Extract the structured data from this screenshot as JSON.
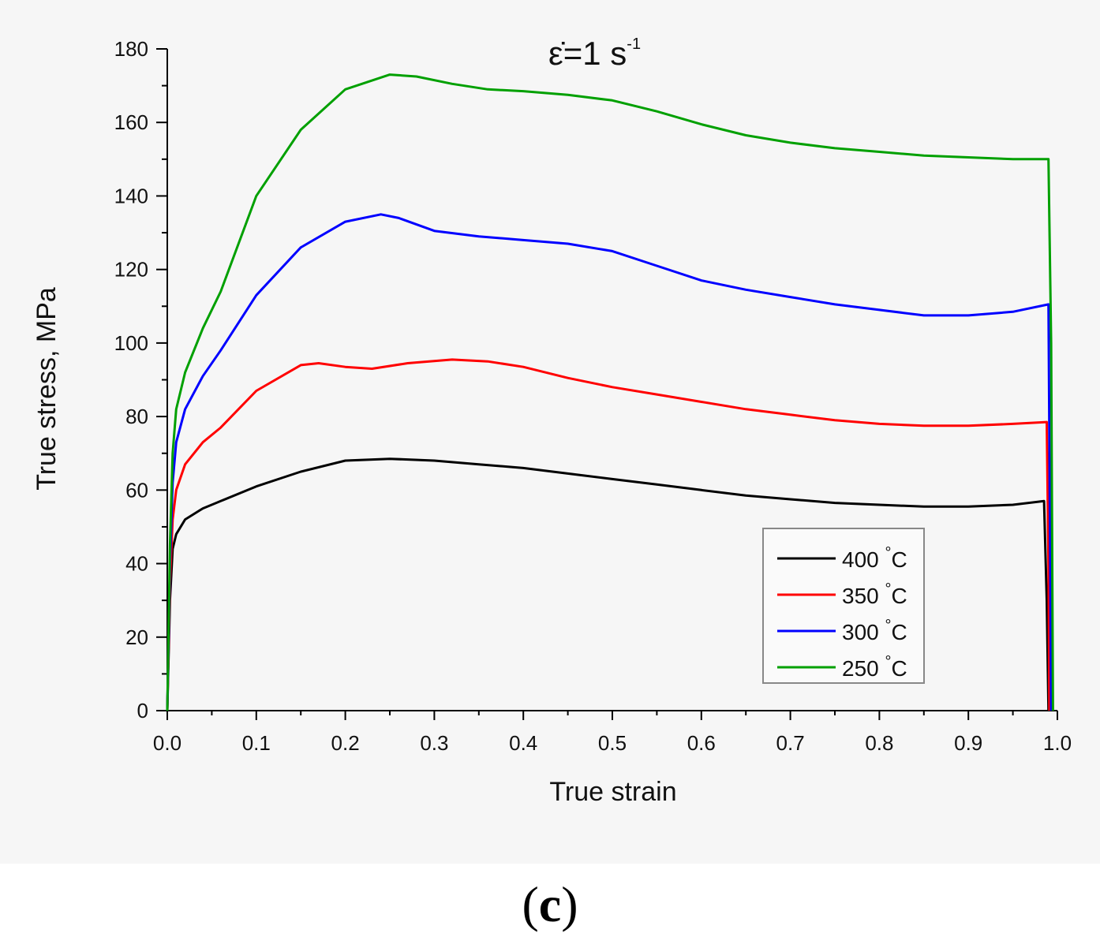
{
  "chart_data": {
    "type": "line",
    "title": {
      "main": "ε̇=1 s",
      "sup": "-1"
    },
    "xlabel": "True strain",
    "ylabel": "True stress, MPa",
    "xlim": [
      0.0,
      1.0
    ],
    "ylim": [
      0,
      180
    ],
    "xticks": [
      "0.0",
      "0.1",
      "0.2",
      "0.3",
      "0.4",
      "0.5",
      "0.6",
      "0.7",
      "0.8",
      "0.9",
      "1.0"
    ],
    "yticks": [
      "0",
      "20",
      "40",
      "60",
      "80",
      "100",
      "120",
      "140",
      "160",
      "180"
    ],
    "legend_position": "bottom-right",
    "series": [
      {
        "name": "400",
        "unit": "°C",
        "color": "#000000",
        "x": [
          0.0,
          0.003,
          0.006,
          0.01,
          0.02,
          0.04,
          0.06,
          0.1,
          0.15,
          0.2,
          0.25,
          0.3,
          0.35,
          0.4,
          0.45,
          0.5,
          0.55,
          0.6,
          0.65,
          0.7,
          0.75,
          0.8,
          0.85,
          0.9,
          0.95,
          0.985,
          0.988,
          0.99
        ],
        "y": [
          0,
          30,
          44,
          48,
          52,
          55,
          57,
          61,
          65,
          68,
          68.5,
          68,
          67,
          66,
          64.5,
          63,
          61.5,
          60,
          58.5,
          57.5,
          56.5,
          56,
          55.5,
          55.5,
          56,
          57,
          30,
          0
        ]
      },
      {
        "name": "350",
        "unit": "°C",
        "color": "#ff0000",
        "x": [
          0.0,
          0.003,
          0.006,
          0.01,
          0.02,
          0.04,
          0.06,
          0.1,
          0.15,
          0.17,
          0.2,
          0.23,
          0.27,
          0.32,
          0.36,
          0.4,
          0.45,
          0.5,
          0.55,
          0.6,
          0.65,
          0.7,
          0.75,
          0.8,
          0.85,
          0.9,
          0.95,
          0.988,
          0.99,
          0.991
        ],
        "y": [
          0,
          35,
          52,
          60,
          67,
          73,
          77,
          87,
          94,
          94.5,
          93.5,
          93,
          94.5,
          95.5,
          95,
          93.5,
          90.5,
          88,
          86,
          84,
          82,
          80.5,
          79,
          78,
          77.5,
          77.5,
          78,
          78.5,
          40,
          0
        ]
      },
      {
        "name": "300",
        "unit": "°C",
        "color": "#0000ff",
        "x": [
          0.0,
          0.003,
          0.006,
          0.01,
          0.02,
          0.04,
          0.06,
          0.1,
          0.15,
          0.2,
          0.24,
          0.26,
          0.3,
          0.35,
          0.4,
          0.45,
          0.5,
          0.55,
          0.6,
          0.65,
          0.7,
          0.75,
          0.8,
          0.85,
          0.9,
          0.95,
          0.99,
          0.993
        ],
        "y": [
          0,
          40,
          62,
          73,
          82,
          91,
          98,
          113,
          126,
          133,
          135,
          134,
          130.5,
          129,
          128,
          127,
          125,
          121,
          117,
          114.5,
          112.5,
          110.5,
          109,
          107.5,
          107.5,
          108.5,
          110.5,
          0
        ]
      },
      {
        "name": "250",
        "unit": "°C",
        "color": "#00a000",
        "x": [
          0.0,
          0.003,
          0.006,
          0.01,
          0.02,
          0.04,
          0.06,
          0.1,
          0.15,
          0.2,
          0.25,
          0.28,
          0.32,
          0.36,
          0.4,
          0.45,
          0.5,
          0.55,
          0.6,
          0.65,
          0.7,
          0.75,
          0.8,
          0.85,
          0.9,
          0.95,
          0.99,
          0.993,
          0.995
        ],
        "y": [
          0,
          45,
          70,
          82,
          92,
          104,
          114,
          140,
          158,
          169,
          173,
          172.5,
          170.5,
          169,
          168.5,
          167.5,
          166,
          163,
          159.5,
          156.5,
          154.5,
          153,
          152,
          151,
          150.5,
          150,
          150,
          100,
          0
        ]
      }
    ]
  },
  "caption": {
    "open": "(",
    "letter": "c",
    "close": ")"
  }
}
